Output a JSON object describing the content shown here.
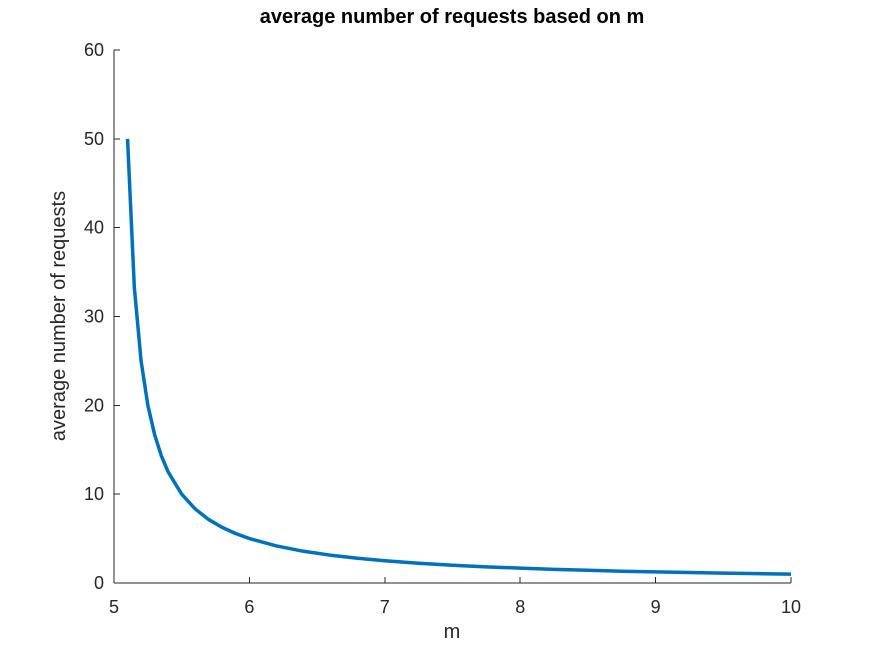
{
  "chart_data": {
    "type": "line",
    "title": "average number of requests based on m",
    "xlabel": "m",
    "ylabel": "average number of requests",
    "xlim": [
      5,
      10
    ],
    "ylim": [
      0,
      60
    ],
    "xticks": [
      5,
      6,
      7,
      8,
      9,
      10
    ],
    "yticks": [
      0,
      10,
      20,
      30,
      40,
      50,
      60
    ],
    "grid": false,
    "line_color": "#0072bd",
    "axis_color": "#262626",
    "series": [
      {
        "x": [
          5.1,
          5.15,
          5.2,
          5.25,
          5.3,
          5.35,
          5.4,
          5.5,
          5.6,
          5.7,
          5.8,
          5.9,
          6.0,
          6.2,
          6.4,
          6.6,
          6.8,
          7.0,
          7.25,
          7.5,
          7.75,
          8.0,
          8.25,
          8.5,
          8.75,
          9.0,
          9.25,
          9.5,
          9.75,
          10.0
        ],
        "y": [
          50.0,
          33.3,
          25.0,
          20.0,
          16.7,
          14.3,
          12.5,
          10.0,
          8.33,
          7.14,
          6.25,
          5.56,
          5.0,
          4.17,
          3.57,
          3.13,
          2.78,
          2.5,
          2.22,
          2.0,
          1.82,
          1.67,
          1.54,
          1.43,
          1.33,
          1.25,
          1.18,
          1.11,
          1.05,
          1.0
        ]
      }
    ]
  }
}
